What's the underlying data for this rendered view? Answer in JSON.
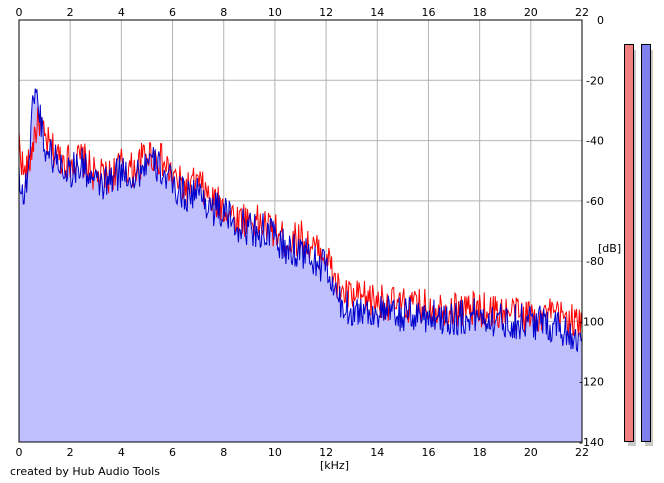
{
  "app": {
    "credit": "created by Hub Audio Tools"
  },
  "colors": {
    "fill": "#c0c0ff",
    "grid": "#b4b4b4",
    "series_red": "#ff0000",
    "series_blue": "#0000cc",
    "meter_left": "#f08080",
    "meter_right": "#8080ee"
  },
  "chart_data": {
    "type": "line",
    "title": "",
    "xlabel": "[kHz]",
    "ylabel": "[dB]",
    "xlim": [
      0,
      22
    ],
    "ylim": [
      -140,
      0
    ],
    "x_ticks": [
      "0",
      "2",
      "4",
      "6",
      "8",
      "10",
      "12",
      "14",
      "16",
      "18",
      "20",
      "22"
    ],
    "y_ticks": [
      "0",
      "-20",
      "-40",
      "-60",
      "-80",
      "-100",
      "-120",
      "-140"
    ],
    "grid": true,
    "series": [
      {
        "color": "#ff0000",
        "x": [
          0,
          0.2,
          0.4,
          0.6,
          0.8,
          1.0,
          1.5,
          2.0,
          2.5,
          3.0,
          3.5,
          4.0,
          4.5,
          5.0,
          5.5,
          6.0,
          6.5,
          7.0,
          7.5,
          8.0,
          8.5,
          9.0,
          9.5,
          10.0,
          10.5,
          11.0,
          11.5,
          12.0,
          12.5,
          13.0,
          14.0,
          15.0,
          16.0,
          17.0,
          18.0,
          19.0,
          20.0,
          21.0,
          21.5,
          22.0
        ],
        "y": [
          -40,
          -52,
          -48,
          -38,
          -33,
          -40,
          -45,
          -47,
          -46,
          -52,
          -52,
          -48,
          -50,
          -44,
          -46,
          -52,
          -56,
          -54,
          -60,
          -62,
          -66,
          -66,
          -68,
          -70,
          -74,
          -72,
          -76,
          -78,
          -90,
          -92,
          -93,
          -95,
          -95,
          -96,
          -96,
          -97,
          -98,
          -98,
          -99,
          -102
        ]
      },
      {
        "color": "#0000cc",
        "x": [
          0,
          0.2,
          0.4,
          0.6,
          0.8,
          1.0,
          1.5,
          2.0,
          2.5,
          3.0,
          3.5,
          4.0,
          4.5,
          5.0,
          5.5,
          6.0,
          6.5,
          7.0,
          7.5,
          8.0,
          8.5,
          9.0,
          9.5,
          10.0,
          10.5,
          11.0,
          11.5,
          12.0,
          12.5,
          13.0,
          14.0,
          15.0,
          16.0,
          17.0,
          18.0,
          19.0,
          20.0,
          21.0,
          21.5,
          22.0
        ],
        "y": [
          -50,
          -60,
          -45,
          -22,
          -30,
          -42,
          -47,
          -50,
          -48,
          -55,
          -54,
          -50,
          -52,
          -47,
          -49,
          -55,
          -58,
          -57,
          -62,
          -64,
          -68,
          -69,
          -70,
          -72,
          -77,
          -76,
          -80,
          -82,
          -94,
          -96,
          -97,
          -98,
          -98,
          -99,
          -98,
          -100,
          -100,
          -101,
          -104,
          -106
        ]
      }
    ],
    "fill_series": 1
  }
}
